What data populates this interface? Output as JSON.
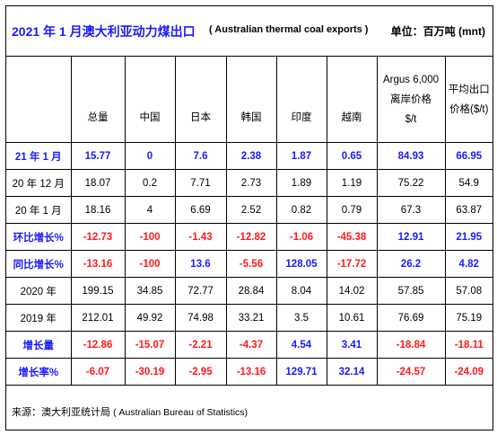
{
  "title": {
    "main": "2021 年 1 月澳大利亚动力煤出口",
    "english": "( Australian thermal coal exports )",
    "unit": "单位：百万吨 (mnt)"
  },
  "headers": {
    "label": "",
    "total": "总量",
    "china": "中国",
    "japan": "日本",
    "korea": "韩国",
    "india": "印度",
    "vietnam": "越南",
    "argus_line1": "Argus 6,000",
    "argus_line2": "离岸价格",
    "argus_line3": "$/t",
    "avg_line1": "平均出口",
    "avg_line2": "价格($/t)"
  },
  "rows": [
    {
      "label": "21 年 1 月",
      "style": "blue-bold-label",
      "values": [
        "15.77",
        "0",
        "7.6",
        "2.38",
        "1.87",
        "0.65",
        "84.93",
        "66.95"
      ],
      "colors": [
        "blue",
        "blue",
        "blue",
        "blue",
        "blue",
        "blue",
        "blue",
        "blue"
      ]
    },
    {
      "label": "20 年 12 月",
      "style": "plain",
      "values": [
        "18.07",
        "0.2",
        "7.71",
        "2.73",
        "1.89",
        "1.19",
        "75.22",
        "54.9"
      ],
      "colors": [
        "",
        "",
        "",
        "",
        "",
        "",
        "",
        ""
      ]
    },
    {
      "label": "20 年 1 月",
      "style": "plain",
      "values": [
        "18.16",
        "4",
        "6.69",
        "2.52",
        "0.82",
        "0.79",
        "67.3",
        "63.87"
      ],
      "colors": [
        "",
        "",
        "",
        "",
        "",
        "",
        "",
        ""
      ]
    },
    {
      "label": "环比增长%",
      "style": "blue-bold-label",
      "values": [
        "-12.73",
        "-100",
        "-1.43",
        "-12.82",
        "-1.06",
        "-45.38",
        "12.91",
        "21.95"
      ],
      "colors": [
        "red",
        "red",
        "red",
        "red",
        "red",
        "red",
        "blue",
        "blue"
      ]
    },
    {
      "label": "同比增长%",
      "style": "blue-bold-label",
      "values": [
        "-13.16",
        "-100",
        "13.6",
        "-5.56",
        "128.05",
        "-17.72",
        "26.2",
        "4.82"
      ],
      "colors": [
        "red",
        "red",
        "blue",
        "red",
        "blue",
        "red",
        "blue",
        "blue"
      ]
    },
    {
      "label": "2020 年",
      "style": "plain",
      "values": [
        "199.15",
        "34.85",
        "72.77",
        "28.84",
        "8.04",
        "14.02",
        "57.85",
        "57.08"
      ],
      "colors": [
        "",
        "",
        "",
        "",
        "",
        "",
        "",
        ""
      ]
    },
    {
      "label": "2019 年",
      "style": "plain",
      "values": [
        "212.01",
        "49.92",
        "74.98",
        "33.21",
        "3.5",
        "10.61",
        "76.69",
        "75.19"
      ],
      "colors": [
        "",
        "",
        "",
        "",
        "",
        "",
        "",
        ""
      ]
    },
    {
      "label": "增长量",
      "style": "blue-bold-label",
      "values": [
        "-12.86",
        "-15.07",
        "-2.21",
        "-4.37",
        "4.54",
        "3.41",
        "-18.84",
        "-18.11"
      ],
      "colors": [
        "red",
        "red",
        "red",
        "red",
        "blue",
        "blue",
        "red",
        "red"
      ]
    },
    {
      "label": "增长率%",
      "style": "blue-bold-label",
      "values": [
        "-6.07",
        "-30.19",
        "-2.95",
        "-13.16",
        "129.71",
        "32.14",
        "-24.57",
        "-24.09"
      ],
      "colors": [
        "red",
        "red",
        "red",
        "red",
        "blue",
        "blue",
        "red",
        "red"
      ]
    }
  ],
  "source": {
    "label": "来源：澳大利亚统计局",
    "english": "( Australian Bureau of Statistics)"
  },
  "colors": {
    "blue": "#1a1aff",
    "red": "#ff1a1a"
  }
}
